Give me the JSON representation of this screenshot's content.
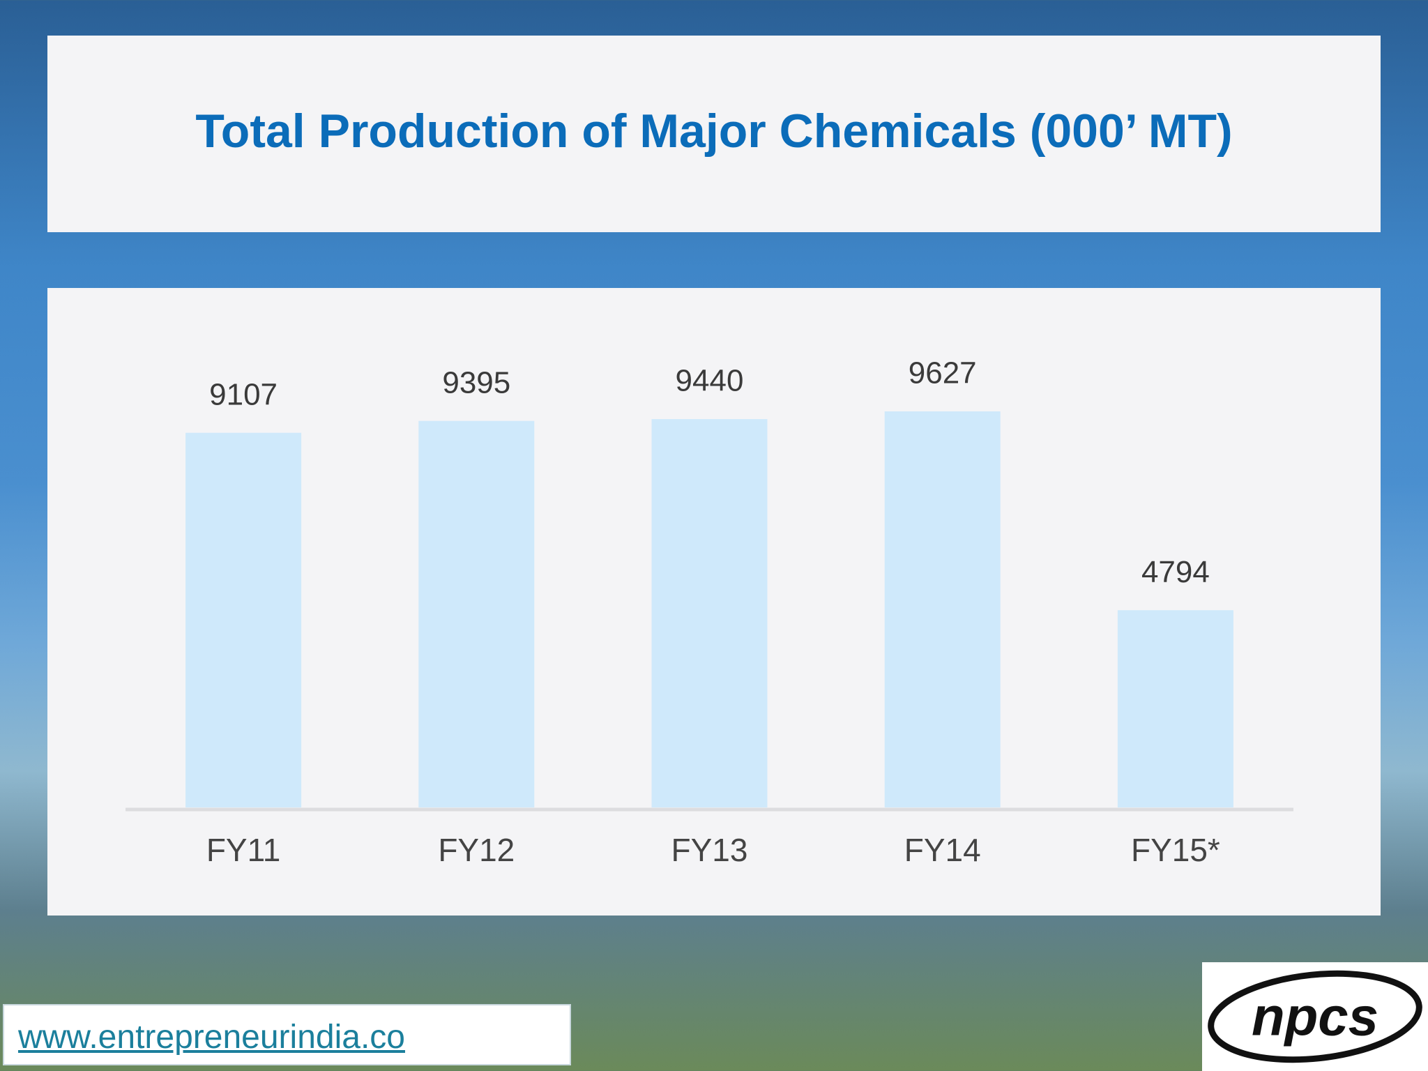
{
  "chart_data": {
    "type": "bar",
    "title": "Total Production of Major Chemicals (000’ MT)",
    "categories": [
      "FY11",
      "FY12",
      "FY13",
      "FY14",
      "FY15*"
    ],
    "values": [
      9107,
      9395,
      9440,
      9627,
      4794
    ],
    "color": "#cfe9fb",
    "ylim": [
      0,
      10000
    ]
  },
  "footer": {
    "url": "www.entrepreneurindia.co",
    "logo": "npcs"
  }
}
